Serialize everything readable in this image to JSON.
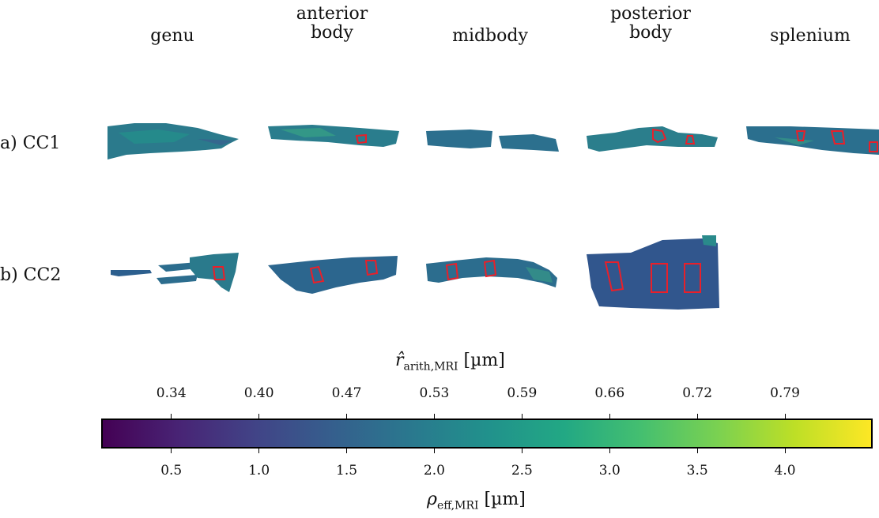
{
  "chart_data": {
    "type": "heatmap",
    "columns": [
      "genu",
      [
        "anterior",
        "body"
      ],
      "midbody",
      [
        "posterior",
        "body"
      ],
      "splenium"
    ],
    "rows": [
      {
        "label": "a) CC1",
        "panels": [
          "genu",
          "anterior body",
          "midbody",
          "posterior body",
          "splenium"
        ]
      },
      {
        "label": "b) CC2",
        "panels": [
          "genu",
          "anterior body",
          "midbody",
          "posterior body"
        ]
      }
    ],
    "colorbar": {
      "colormap": "viridis",
      "top_axis": {
        "label_main": "r̂",
        "label_sub": "arith,MRI",
        "label_unit": " [µm]",
        "ticks": [
          "0.34",
          "0.40",
          "0.47",
          "0.53",
          "0.59",
          "0.66",
          "0.72",
          "0.79"
        ]
      },
      "bottom_axis": {
        "label_main": "ρ",
        "label_sub": "eff,MRI",
        "label_unit": " [µm]",
        "ticks": [
          0.5,
          1.0,
          1.5,
          2.0,
          2.5,
          3.0,
          3.5,
          4.0
        ],
        "tick_labels": [
          "0.5",
          "1.0",
          "1.5",
          "2.0",
          "2.5",
          "3.0",
          "3.5",
          "4.0"
        ],
        "range": [
          0.1,
          4.5
        ]
      }
    },
    "roi_color": "#e8202a"
  },
  "colors": {
    "viridis_stops": [
      "#440154",
      "#482475",
      "#414487",
      "#355f8d",
      "#2a788e",
      "#21918c",
      "#22a884",
      "#44bf70",
      "#7ad151",
      "#bddf26",
      "#fde725"
    ]
  }
}
